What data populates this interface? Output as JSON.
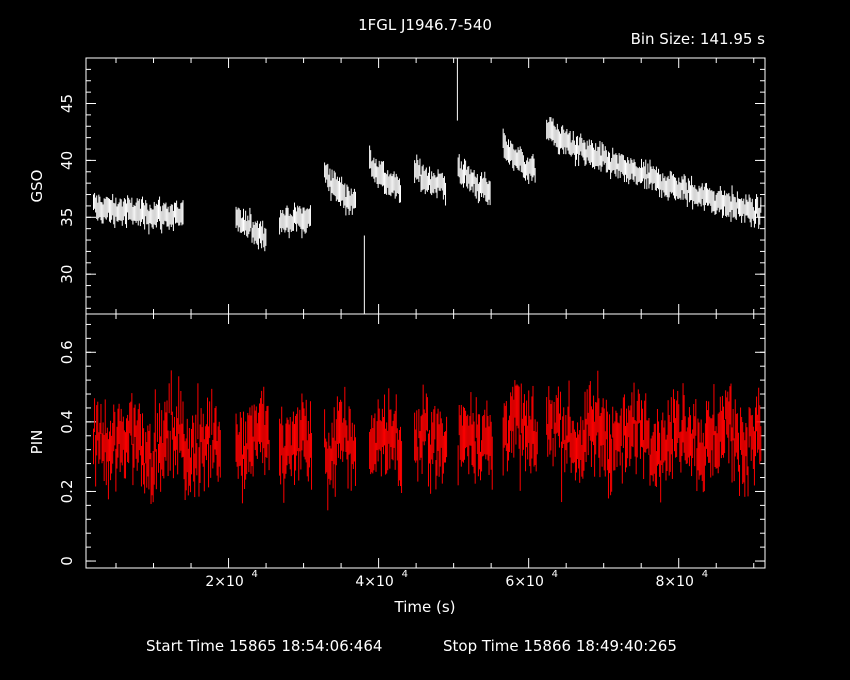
{
  "title": "1FGL J1946.7-540",
  "bin_size": "Bin Size: 141.95 s",
  "start_time": "Start Time 15865 18:54:06:464",
  "stop_time": "Stop Time 15866 18:49:40:265",
  "colors": {
    "background": "#000000",
    "axes": "#ffffff",
    "gso_series": "#ffffff",
    "pin_series": "#ff0000"
  },
  "chart_data": [
    {
      "type": "scatter",
      "style": "points with vertical error bars",
      "title": "1FGL J1946.7-540",
      "xlabel": "",
      "ylabel": "GSO",
      "xlim": [
        1000,
        91500
      ],
      "ylim": [
        26.5,
        49
      ],
      "x_ticks": [
        20000,
        40000,
        60000,
        80000
      ],
      "y_ticks": [
        30,
        35,
        40,
        45
      ],
      "y_tick_labels": [
        "30",
        "35",
        "40",
        "45"
      ],
      "grid": false,
      "series": [
        {
          "color": "#ffffff",
          "segments": [
            {
              "x": [
                2000,
                14000
              ],
              "y_start": 35.9,
              "y_end": 35.1
            },
            {
              "x": [
                21000,
                25000
              ],
              "y_start": 34.8,
              "y_end": 33.5
            },
            {
              "x": [
                26800,
                31000
              ],
              "y_start": 34.6,
              "y_end": 34.9
            },
            {
              "x": [
                32800,
                37000
              ],
              "y_start": 39.1,
              "y_end": 36.2
            },
            {
              "x": [
                38800,
                43000
              ],
              "y_start": 40.2,
              "y_end": 37.2
            },
            {
              "x": [
                44800,
                49000
              ],
              "y_start": 39.2,
              "y_end": 37.6
            },
            {
              "x": [
                50600,
                55000
              ],
              "y_start": 39.5,
              "y_end": 37.1
            },
            {
              "x": [
                56600,
                61000
              ],
              "y_start": 41.6,
              "y_end": 38.9
            },
            {
              "x": [
                62400,
                91000
              ],
              "y_start": 43.0,
              "y_end": 35.3
            }
          ],
          "spikes": [
            {
              "x": 38100,
              "y_low": 26.5,
              "y_high": 33.4
            },
            {
              "x": 50500,
              "y_low": 43.5,
              "y_high": 49.0
            }
          ]
        }
      ]
    },
    {
      "type": "scatter",
      "style": "points with vertical error bars",
      "xlabel": "Time (s)",
      "ylabel": "PIN",
      "xlim": [
        1000,
        91500
      ],
      "ylim": [
        -0.02,
        0.71
      ],
      "x_ticks": [
        20000,
        40000,
        60000,
        80000
      ],
      "x_tick_labels": [
        "2×10",
        "4×10",
        "6×10",
        "8×10"
      ],
      "x_tick_exponent": "4",
      "y_ticks": [
        0,
        0.2,
        0.4,
        0.6
      ],
      "y_tick_labels": [
        "0",
        "0.2",
        "0.4",
        "0.6"
      ],
      "grid": false,
      "series": [
        {
          "color": "#ff0000",
          "segments": [
            {
              "x": [
                2000,
                19000
              ],
              "y_mean": 0.34
            },
            {
              "x": [
                21000,
                25500
              ],
              "y_mean": 0.35
            },
            {
              "x": [
                26800,
                31200
              ],
              "y_mean": 0.33
            },
            {
              "x": [
                32800,
                37000
              ],
              "y_mean": 0.32
            },
            {
              "x": [
                38800,
                43200
              ],
              "y_mean": 0.34
            },
            {
              "x": [
                44800,
                49200
              ],
              "y_mean": 0.33
            },
            {
              "x": [
                50600,
                55200
              ],
              "y_mean": 0.35
            },
            {
              "x": [
                56600,
                61200
              ],
              "y_mean": 0.37
            },
            {
              "x": [
                62400,
                91000
              ],
              "y_mean": 0.36
            }
          ]
        }
      ]
    }
  ]
}
